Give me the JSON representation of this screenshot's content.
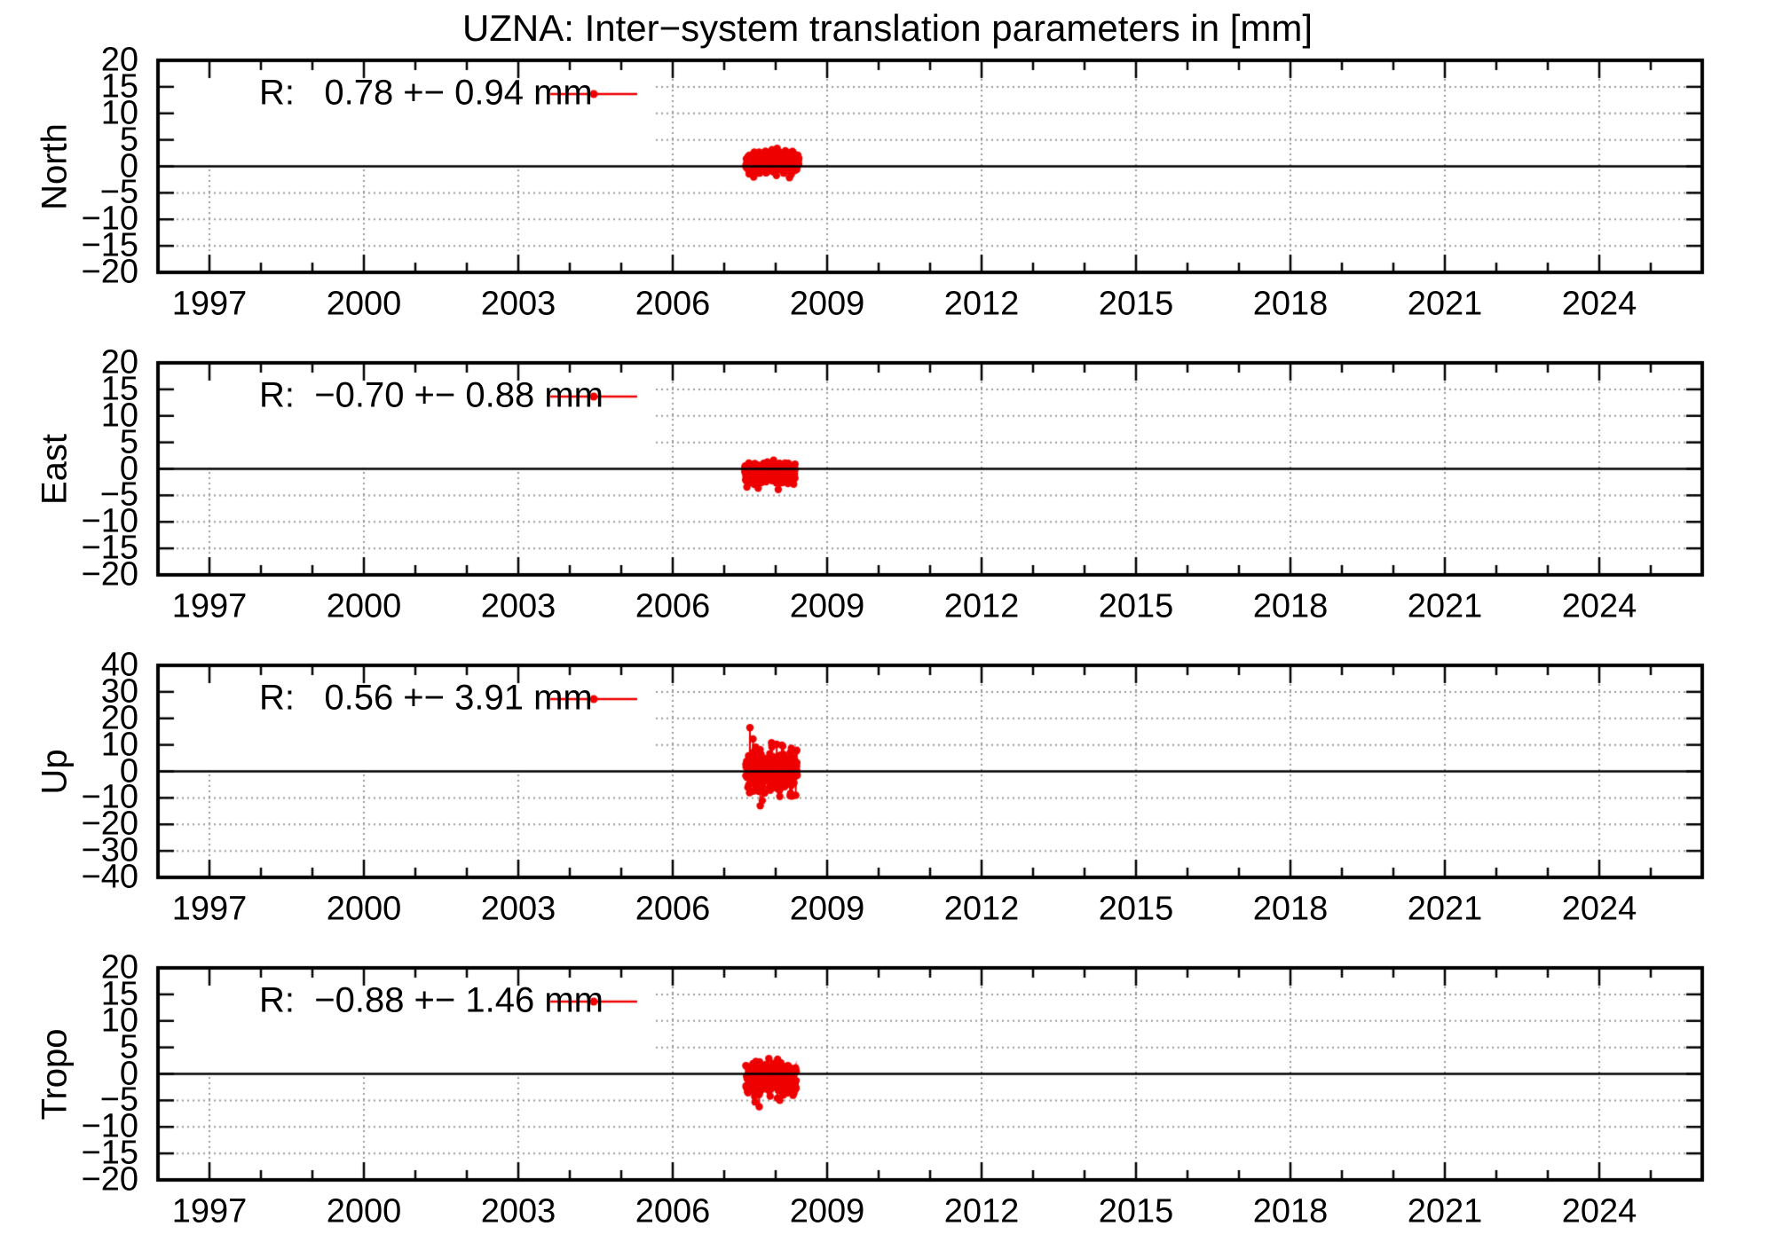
{
  "title": "UZNA: Inter−system translation parameters in [mm]",
  "colors": {
    "series": "#ee0000",
    "grid": "#9a9a9a",
    "axis": "#000000",
    "zero_line": "#000000",
    "background": "#ffffff"
  },
  "x_axis": {
    "range": [
      1996,
      2026
    ],
    "major_ticks": [
      1997,
      2000,
      2003,
      2006,
      2009,
      2012,
      2015,
      2018,
      2021,
      2024
    ],
    "minor_step_years": 1
  },
  "chart_data": [
    {
      "type": "scatter",
      "ylabel": "North",
      "legend": "R:   0.78 +− 0.94 mm",
      "stats": {
        "mean_mm": 0.78,
        "sigma_mm": 0.94
      },
      "ylim": [
        -20,
        20
      ],
      "yticks": [
        20,
        15,
        10,
        5,
        0,
        -5,
        -10,
        -15,
        -20
      ],
      "seed": 11,
      "cluster": {
        "x_start": 2007.42,
        "x_end": 2008.45,
        "n": 300,
        "mean": 0.78,
        "sd": 0.94,
        "clip": [
          -2.6,
          3.6
        ]
      },
      "outliers": []
    },
    {
      "type": "scatter",
      "ylabel": "East",
      "legend": "R:  −0.70 +− 0.88 mm",
      "stats": {
        "mean_mm": -0.7,
        "sigma_mm": 0.88
      },
      "ylim": [
        -20,
        20
      ],
      "yticks": [
        20,
        15,
        10,
        5,
        0,
        -5,
        -10,
        -15,
        -20
      ],
      "seed": 22,
      "cluster": {
        "x_start": 2007.4,
        "x_end": 2008.38,
        "n": 300,
        "mean": -0.7,
        "sd": 0.88,
        "clip": [
          -3.7,
          2.6
        ]
      },
      "outliers": [
        [
          2008.05,
          -3.9
        ]
      ]
    },
    {
      "type": "scatter",
      "ylabel": "Up",
      "legend": "R:   0.56 +− 3.91 mm",
      "stats": {
        "mean_mm": 0.56,
        "sigma_mm": 3.91
      },
      "ylim": [
        -40,
        40
      ],
      "yticks": [
        40,
        30,
        20,
        10,
        0,
        -10,
        -20,
        -30,
        -40
      ],
      "seed": 33,
      "cluster": {
        "x_start": 2007.42,
        "x_end": 2008.42,
        "n": 300,
        "mean": 0.56,
        "sd": 3.91,
        "clip": [
          -9.8,
          9.8
        ]
      },
      "outliers": [
        [
          2007.5,
          16.5
        ],
        [
          2007.56,
          12.2
        ],
        [
          2007.7,
          -13.0
        ],
        [
          2007.74,
          -11.0
        ],
        [
          2007.92,
          10.8
        ],
        [
          2008.02,
          10.2
        ],
        [
          2008.12,
          9.9
        ],
        [
          2008.28,
          -9.2
        ]
      ]
    },
    {
      "type": "scatter",
      "ylabel": "Tropo",
      "legend": "R:  −0.88 +− 1.46 mm",
      "stats": {
        "mean_mm": -0.88,
        "sigma_mm": 1.46
      },
      "ylim": [
        -20,
        20
      ],
      "yticks": [
        20,
        15,
        10,
        5,
        0,
        -5,
        -10,
        -15,
        -20
      ],
      "seed": 44,
      "cluster": {
        "x_start": 2007.42,
        "x_end": 2008.4,
        "n": 300,
        "mean": -0.88,
        "sd": 1.46,
        "clip": [
          -4.6,
          3.1
        ]
      },
      "outliers": [
        [
          2007.6,
          -5.3
        ],
        [
          2007.68,
          -6.2
        ],
        [
          2008.08,
          -5.0
        ]
      ]
    }
  ]
}
